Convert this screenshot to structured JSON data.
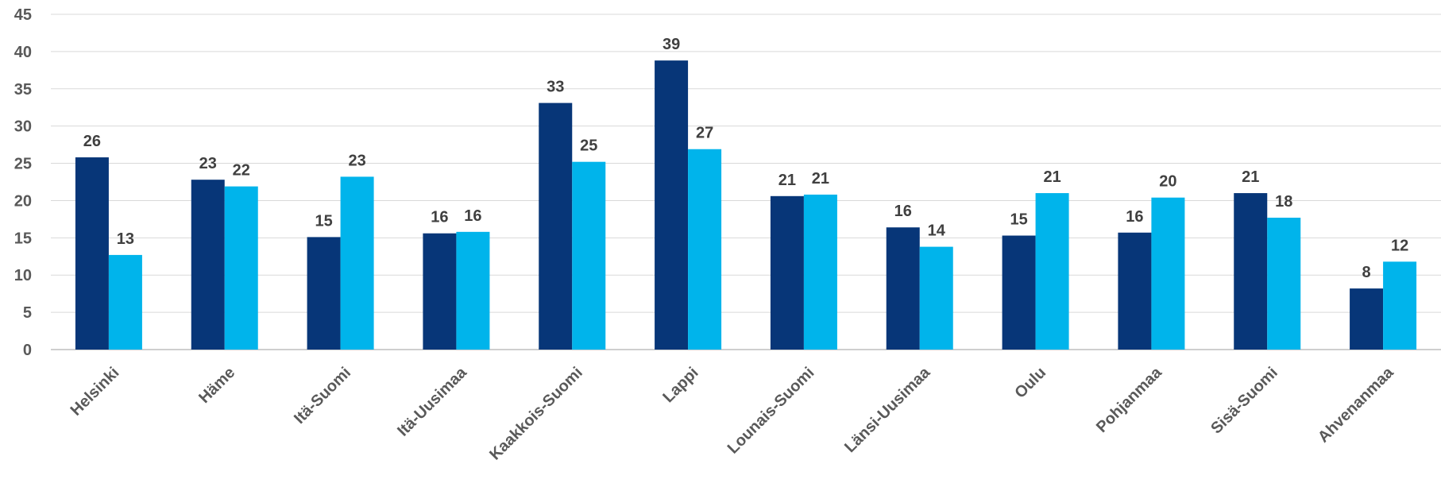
{
  "chart_data": {
    "type": "bar",
    "title": "",
    "xlabel": "",
    "ylabel": "",
    "ylim": [
      0,
      45
    ],
    "yticks": [
      0,
      5,
      10,
      15,
      20,
      25,
      30,
      35,
      40,
      45
    ],
    "grid": true,
    "legend": "none",
    "categories": [
      "Helsinki",
      "Häme",
      "Itä-Suomi",
      "Itä-Uusimaa",
      "Kaakkois-Suomi",
      "Lappi",
      "Lounais-Suomi",
      "Länsi-Uusimaa",
      "Oulu",
      "Pohjanmaa",
      "Sisä-Suomi",
      "Ahvenanmaa"
    ],
    "series": [
      {
        "color": "#073678",
        "values": [
          25.8,
          22.8,
          15.1,
          15.6,
          33.1,
          38.8,
          20.6,
          16.4,
          15.3,
          15.7,
          21.0,
          8.2
        ],
        "labels": [
          "26",
          "23",
          "15",
          "16",
          "33",
          "39",
          "21",
          "16",
          "15",
          "16",
          "21",
          "8"
        ]
      },
      {
        "color": "#00b4eb",
        "values": [
          12.7,
          21.9,
          23.2,
          15.8,
          25.2,
          26.9,
          20.8,
          13.8,
          21.0,
          20.4,
          17.7,
          11.8
        ],
        "labels": [
          "13",
          "22",
          "23",
          "16",
          "25",
          "27",
          "21",
          "14",
          "21",
          "20",
          "18",
          "12"
        ]
      }
    ]
  }
}
